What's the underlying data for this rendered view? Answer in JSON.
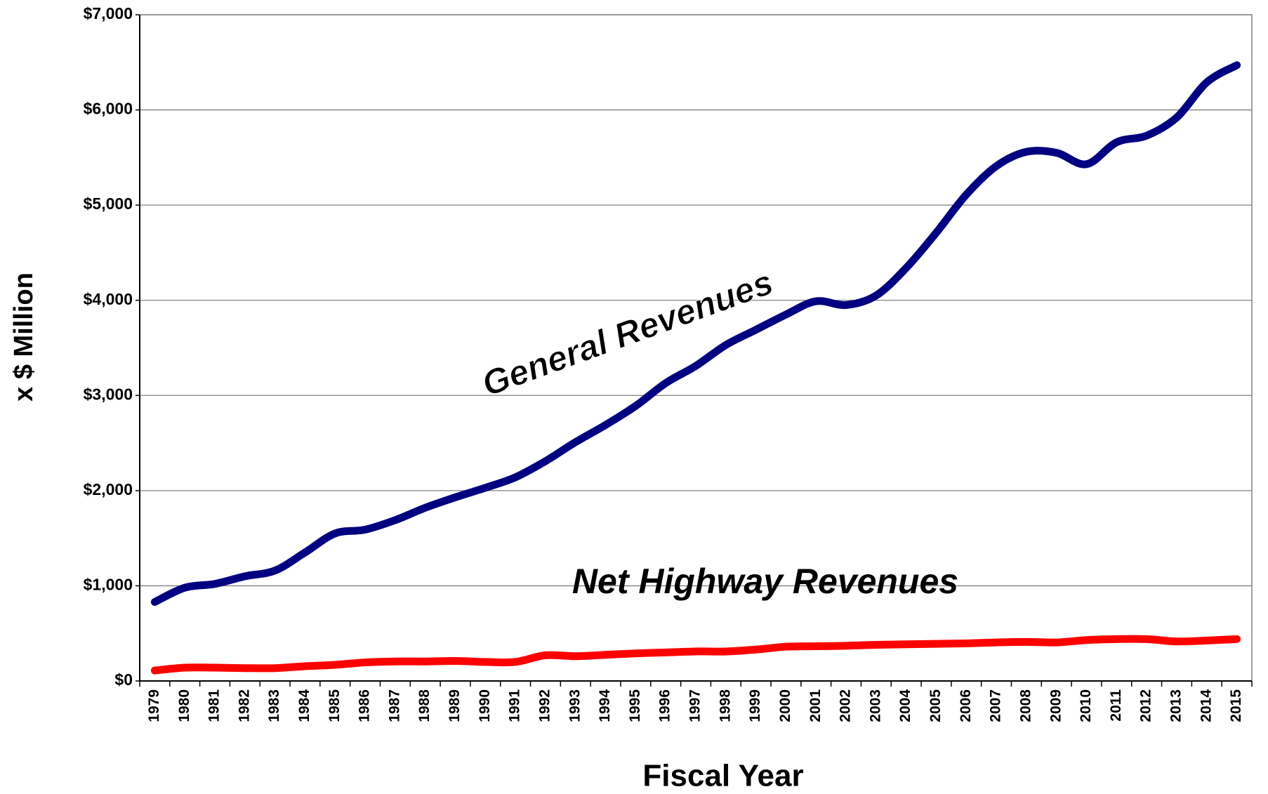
{
  "chart_data": {
    "type": "line",
    "xlabel": "Fiscal Year",
    "ylabel": "x $ Million",
    "categories": [
      "1979",
      "1980",
      "1981",
      "1982",
      "1983",
      "1984",
      "1985",
      "1986",
      "1987",
      "1988",
      "1989",
      "1990",
      "1991",
      "1992",
      "1993",
      "1994",
      "1995",
      "1996",
      "1997",
      "1998",
      "1999",
      "2000",
      "2001",
      "2002",
      "2003",
      "2004",
      "2005",
      "2006",
      "2007",
      "2008",
      "2009",
      "2010",
      "2011",
      "2012",
      "2013",
      "2014",
      "2015"
    ],
    "series": [
      {
        "name": "General Revenues",
        "color": "#000080",
        "values": [
          830,
          980,
          1020,
          1100,
          1160,
          1350,
          1550,
          1590,
          1690,
          1820,
          1930,
          2030,
          2140,
          2310,
          2510,
          2690,
          2890,
          3130,
          3310,
          3530,
          3690,
          3850,
          3990,
          3950,
          4050,
          4340,
          4710,
          5110,
          5410,
          5560,
          5550,
          5430,
          5660,
          5730,
          5920,
          6290,
          6470
        ]
      },
      {
        "name": "Net Highway Revenues",
        "color": "#ff0000",
        "values": [
          110,
          140,
          140,
          135,
          135,
          155,
          170,
          195,
          205,
          205,
          210,
          200,
          200,
          270,
          260,
          275,
          290,
          300,
          310,
          310,
          330,
          360,
          365,
          370,
          380,
          385,
          390,
          395,
          405,
          410,
          405,
          430,
          440,
          440,
          415,
          425,
          440
        ]
      }
    ],
    "ylim": [
      0,
      7000
    ],
    "yticks": [
      {
        "value": 0,
        "label": "$0"
      },
      {
        "value": 1000,
        "label": "$1,000"
      },
      {
        "value": 2000,
        "label": "$2,000"
      },
      {
        "value": 3000,
        "label": "$3,000"
      },
      {
        "value": 4000,
        "label": "$4,000"
      },
      {
        "value": 5000,
        "label": "$5,000"
      },
      {
        "value": 6000,
        "label": "$6,000"
      },
      {
        "value": 7000,
        "label": "$7,000"
      }
    ],
    "grid": true
  }
}
